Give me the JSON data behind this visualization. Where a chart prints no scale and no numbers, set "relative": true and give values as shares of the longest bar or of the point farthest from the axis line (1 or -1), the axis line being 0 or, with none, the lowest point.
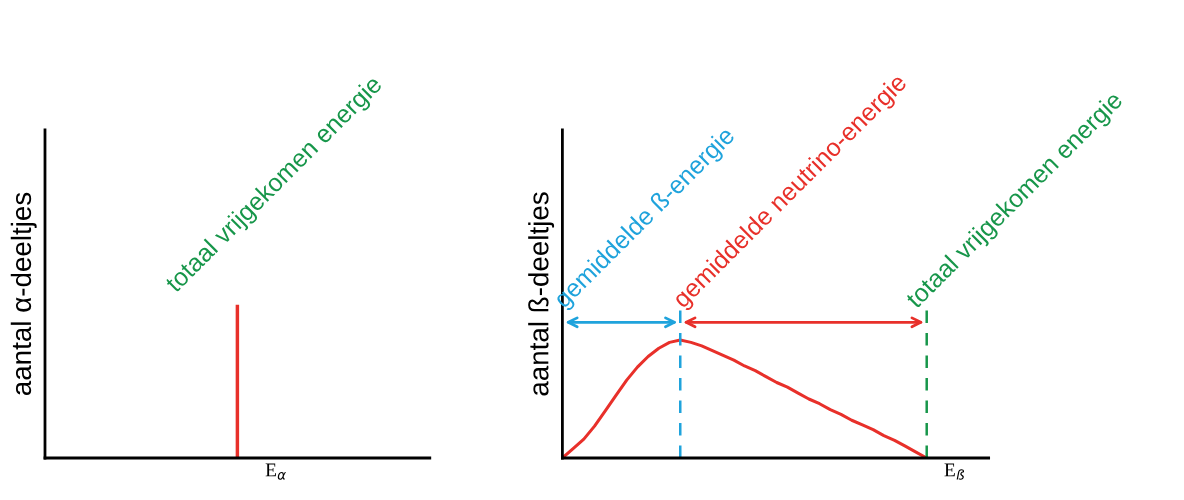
{
  "chart_data": [
    {
      "type": "bar",
      "relative": true,
      "ylabel": "aantal α-deeltjes",
      "xlabel": "E$_{α}$",
      "categories": [
        null
      ],
      "series": [
        {
          "color": "#e8302a",
          "values": [
            1
          ]
        }
      ],
      "annotations": [
        "totaal vrijgekomen energie"
      ]
    },
    {
      "type": "line",
      "relative": true,
      "ylabel": "aantal ß-deeltjes",
      "xlabel": "E$_{ß}$",
      "categories": [
        null,
        null,
        null,
        null,
        null,
        null,
        null,
        null,
        null,
        null,
        null,
        null,
        null,
        null,
        null,
        null,
        null,
        null,
        null,
        null,
        null,
        null,
        null,
        null,
        null,
        null,
        null,
        null,
        null,
        null,
        null,
        null,
        null,
        null,
        null
      ],
      "series": [
        {
          "color": "#e8302a",
          "values": [
            0,
            0.08,
            0.16,
            0.27,
            0.4,
            0.53,
            0.66,
            0.77,
            0.86,
            0.93,
            0.98,
            1.0,
            0.98,
            0.95,
            0.91,
            0.87,
            0.83,
            0.78,
            0.74,
            0.69,
            0.64,
            0.6,
            0.55,
            0.5,
            0.46,
            0.41,
            0.37,
            0.32,
            0.28,
            0.24,
            0.19,
            0.15,
            0.1,
            0.05,
            0
          ]
        }
      ],
      "annotations": [
        "gemiddelde ß-energie",
        "gemiddelde neutrino-energie",
        "totaal vrijgekomen energie"
      ]
    }
  ]
}
